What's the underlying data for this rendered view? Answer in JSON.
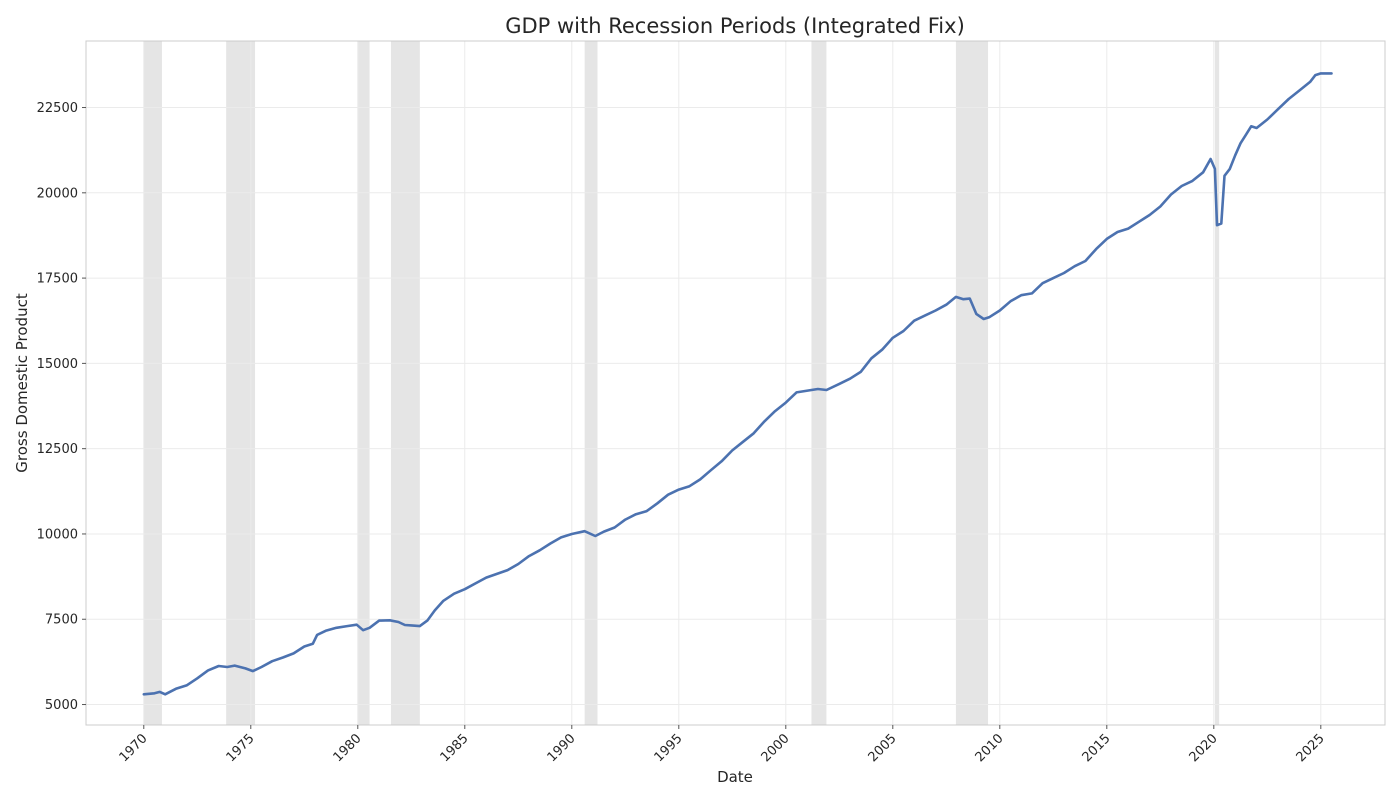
{
  "chart_data": {
    "type": "line",
    "title": "GDP with Recession Periods (Integrated Fix)",
    "xlabel": "Date",
    "ylabel": "Gross Domestic Product",
    "xlim": [
      1967.3,
      2028.0
    ],
    "ylim": [
      4400,
      24450
    ],
    "x_ticks": [
      1970,
      1975,
      1980,
      1985,
      1990,
      1995,
      2000,
      2005,
      2010,
      2015,
      2020,
      2025
    ],
    "x_tick_labels": [
      "1970",
      "1975",
      "1980",
      "1985",
      "1990",
      "1995",
      "2000",
      "2005",
      "2010",
      "2015",
      "2020",
      "2025"
    ],
    "y_ticks": [
      5000,
      7500,
      10000,
      12500,
      15000,
      17500,
      20000,
      22500
    ],
    "y_tick_labels": [
      "5000",
      "7500",
      "10000",
      "12500",
      "15000",
      "17500",
      "20000",
      "22500"
    ],
    "grid": true,
    "line_color": "#4c72b0",
    "recession_color": "#d3d3d3",
    "recession_periods": [
      {
        "start": 1970.0,
        "end": 1970.85
      },
      {
        "start": 1973.85,
        "end": 1975.2
      },
      {
        "start": 1980.0,
        "end": 1980.55
      },
      {
        "start": 1981.55,
        "end": 1982.9
      },
      {
        "start": 1990.6,
        "end": 1991.2
      },
      {
        "start": 2001.2,
        "end": 2001.9
      },
      {
        "start": 2007.95,
        "end": 2009.45
      },
      {
        "start": 2020.05,
        "end": 2020.25
      }
    ],
    "series": [
      {
        "x": [
          1970.0,
          1970.5,
          1970.75,
          1971.0,
          1971.5,
          1972.0,
          1972.5,
          1973.0,
          1973.5,
          1973.9,
          1974.25,
          1974.75,
          1975.1,
          1975.5,
          1976.0,
          1976.5,
          1977.0,
          1977.5,
          1977.9,
          1978.1,
          1978.5,
          1979.0,
          1979.5,
          1979.95,
          1980.25,
          1980.55,
          1981.0,
          1981.5,
          1981.9,
          1982.2,
          1982.5,
          1982.9,
          1983.25,
          1983.6,
          1984.0,
          1984.5,
          1985.0,
          1985.5,
          1986.0,
          1986.5,
          1987.0,
          1987.5,
          1988.0,
          1988.5,
          1989.0,
          1989.5,
          1990.0,
          1990.6,
          1991.1,
          1991.5,
          1992.0,
          1992.5,
          1993.0,
          1993.5,
          1994.0,
          1994.5,
          1995.0,
          1995.5,
          1996.0,
          1996.5,
          1997.0,
          1997.5,
          1998.0,
          1998.5,
          1999.0,
          1999.5,
          2000.0,
          2000.5,
          2001.2,
          2001.5,
          2001.9,
          2002.5,
          2003.0,
          2003.5,
          2004.0,
          2004.5,
          2005.0,
          2005.5,
          2006.0,
          2006.5,
          2007.0,
          2007.5,
          2007.95,
          2008.3,
          2008.6,
          2008.9,
          2009.25,
          2009.5,
          2010.0,
          2010.5,
          2011.0,
          2011.5,
          2012.0,
          2012.5,
          2013.0,
          2013.5,
          2014.0,
          2014.5,
          2015.0,
          2015.5,
          2016.0,
          2016.5,
          2017.0,
          2017.5,
          2018.0,
          2018.5,
          2019.0,
          2019.5,
          2019.85,
          2020.05,
          2020.15,
          2020.35,
          2020.5,
          2020.75,
          2021.0,
          2021.25,
          2021.5,
          2021.75,
          2022.0,
          2022.5,
          2023.0,
          2023.5,
          2024.0,
          2024.5,
          2024.75,
          2025.0,
          2025.5
        ],
        "y": [
          5300,
          5330,
          5370,
          5300,
          5460,
          5560,
          5770,
          6000,
          6130,
          6100,
          6140,
          6060,
          5980,
          6100,
          6270,
          6380,
          6500,
          6700,
          6780,
          7040,
          7160,
          7250,
          7300,
          7340,
          7180,
          7250,
          7460,
          7470,
          7420,
          7330,
          7320,
          7300,
          7460,
          7760,
          8040,
          8250,
          8380,
          8550,
          8720,
          8830,
          8940,
          9120,
          9350,
          9520,
          9720,
          9900,
          10000,
          10080,
          9940,
          10070,
          10190,
          10420,
          10580,
          10670,
          10900,
          11150,
          11300,
          11400,
          11600,
          11870,
          12130,
          12450,
          12700,
          12950,
          13300,
          13600,
          13850,
          14150,
          14220,
          14250,
          14220,
          14400,
          14550,
          14750,
          15150,
          15400,
          15750,
          15950,
          16250,
          16400,
          16550,
          16720,
          16950,
          16880,
          16900,
          16450,
          16300,
          16350,
          16550,
          16820,
          17000,
          17050,
          17350,
          17500,
          17650,
          17850,
          18000,
          18350,
          18650,
          18850,
          18950,
          19150,
          19350,
          19600,
          19950,
          20200,
          20350,
          20600,
          20990,
          20700,
          19050,
          19100,
          20500,
          20700,
          21100,
          21450,
          21700,
          21950,
          21900,
          22150,
          22450,
          22750,
          23000,
          23250,
          23450,
          23500,
          23500
        ]
      }
    ]
  }
}
